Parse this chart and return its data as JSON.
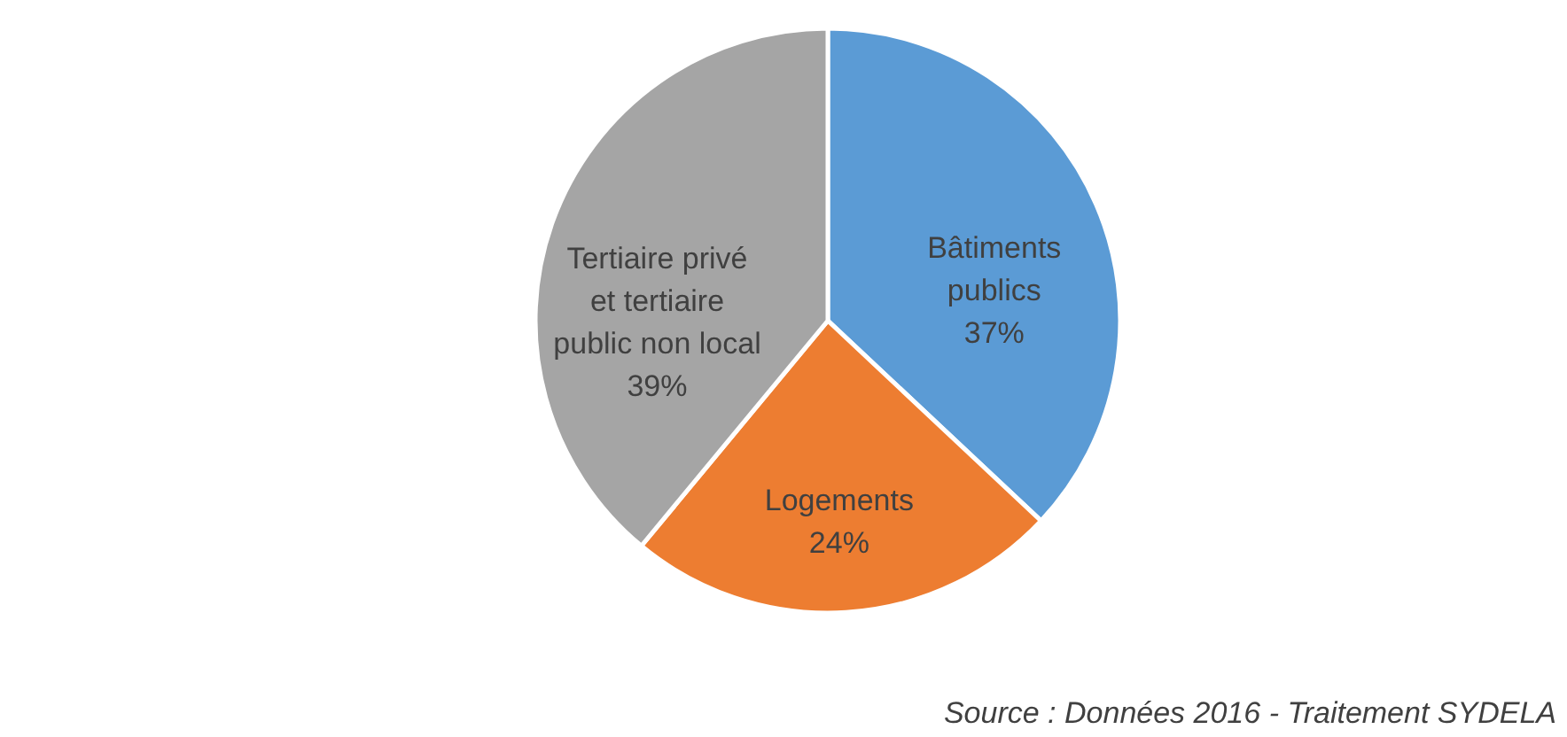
{
  "chart_data": {
    "type": "pie",
    "categories": [
      "Bâtiments publics",
      "Logements",
      "Tertiaire privé et tertiaire public non local"
    ],
    "values": [
      37,
      24,
      39
    ],
    "colors": [
      "#5b9bd5",
      "#ed7d31",
      "#a5a5a5"
    ],
    "value_labels": [
      "37%",
      "24%",
      "39%"
    ],
    "annotations": [
      "Source : Données 2016 - Traitement SYDELA"
    ]
  }
}
